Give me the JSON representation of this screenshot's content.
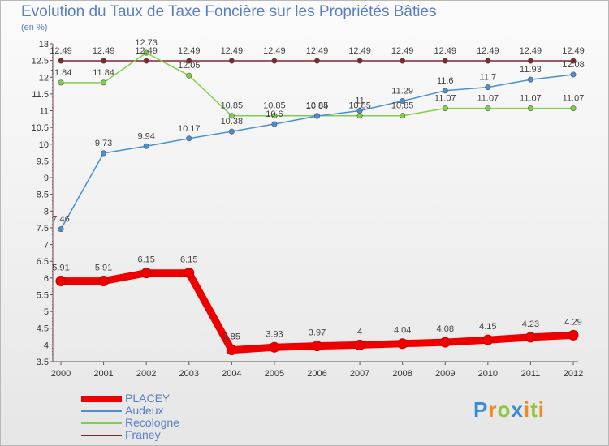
{
  "chart_data": {
    "type": "line",
    "title": "Evolution du Taux de Taxe Foncière sur les Propriétés Bâties",
    "subtitle": "(en %)",
    "xlabel": "",
    "ylabel": "",
    "ylim": [
      3.5,
      13
    ],
    "yticks": [
      "3.5",
      "4",
      "4.5",
      "5",
      "5.5",
      "6",
      "6.5",
      "7",
      "7.5",
      "8",
      "8.5",
      "9",
      "9.5",
      "10",
      "10.5",
      "11",
      "11.5",
      "12",
      "12.5",
      "13"
    ],
    "categories": [
      "2000",
      "2001",
      "2002",
      "2003",
      "2004",
      "2005",
      "2006",
      "2007",
      "2008",
      "2009",
      "2010",
      "2011",
      "2012"
    ],
    "series": [
      {
        "name": "PLACEY",
        "color": "#ee0000",
        "values": [
          5.91,
          5.91,
          6.15,
          6.15,
          3.85,
          3.93,
          3.97,
          4,
          4.04,
          4.08,
          4.15,
          4.23,
          4.29
        ],
        "labels": [
          "5.91",
          "5.91",
          "6.15",
          "6.15",
          "3.85",
          "3.93",
          "3.97",
          "4",
          "4.04",
          "4.08",
          "4.15",
          "4.23",
          "4.29"
        ]
      },
      {
        "name": "Audeux",
        "color": "#4a90d0",
        "values": [
          7.46,
          9.73,
          9.94,
          10.17,
          10.38,
          10.6,
          10.84,
          11,
          11.29,
          11.6,
          11.7,
          11.93,
          12.08
        ],
        "labels": [
          "7.46",
          "9.73",
          "9.94",
          "10.17",
          "10.38",
          "10.6",
          "10.84",
          "11",
          "11.29",
          "11.6",
          "11.7",
          "11.93",
          "12.08"
        ]
      },
      {
        "name": "Recologne",
        "color": "#7ed04a",
        "values": [
          11.84,
          11.84,
          12.73,
          12.05,
          10.85,
          10.85,
          10.85,
          10.85,
          10.85,
          11.07,
          11.07,
          11.07,
          11.07
        ],
        "labels": [
          "11.84",
          "11.84",
          "12.73",
          "12.05",
          "10.85",
          "10.85",
          "10.85",
          "10.85",
          "10.85",
          "11.07",
          "11.07",
          "11.07",
          "11.07"
        ]
      },
      {
        "name": "Franey",
        "color": "#7a2a2a",
        "values": [
          12.49,
          12.49,
          12.49,
          12.49,
          12.49,
          12.49,
          12.49,
          12.49,
          12.49,
          12.49,
          12.49,
          12.49,
          12.49
        ],
        "labels": [
          "12.49",
          "12.49",
          "12.49",
          "12.49",
          "12.49",
          "12.49",
          "12.49",
          "12.49",
          "12.49",
          "12.49",
          "12.49",
          "12.49",
          "12.49"
        ]
      }
    ],
    "legend": {
      "position": "bottom-left"
    },
    "grid": false
  },
  "logo": {
    "p": "P",
    "r": "r",
    "o": "o",
    "x": "x",
    "i": "i",
    "t": "t",
    "i2": "i"
  }
}
